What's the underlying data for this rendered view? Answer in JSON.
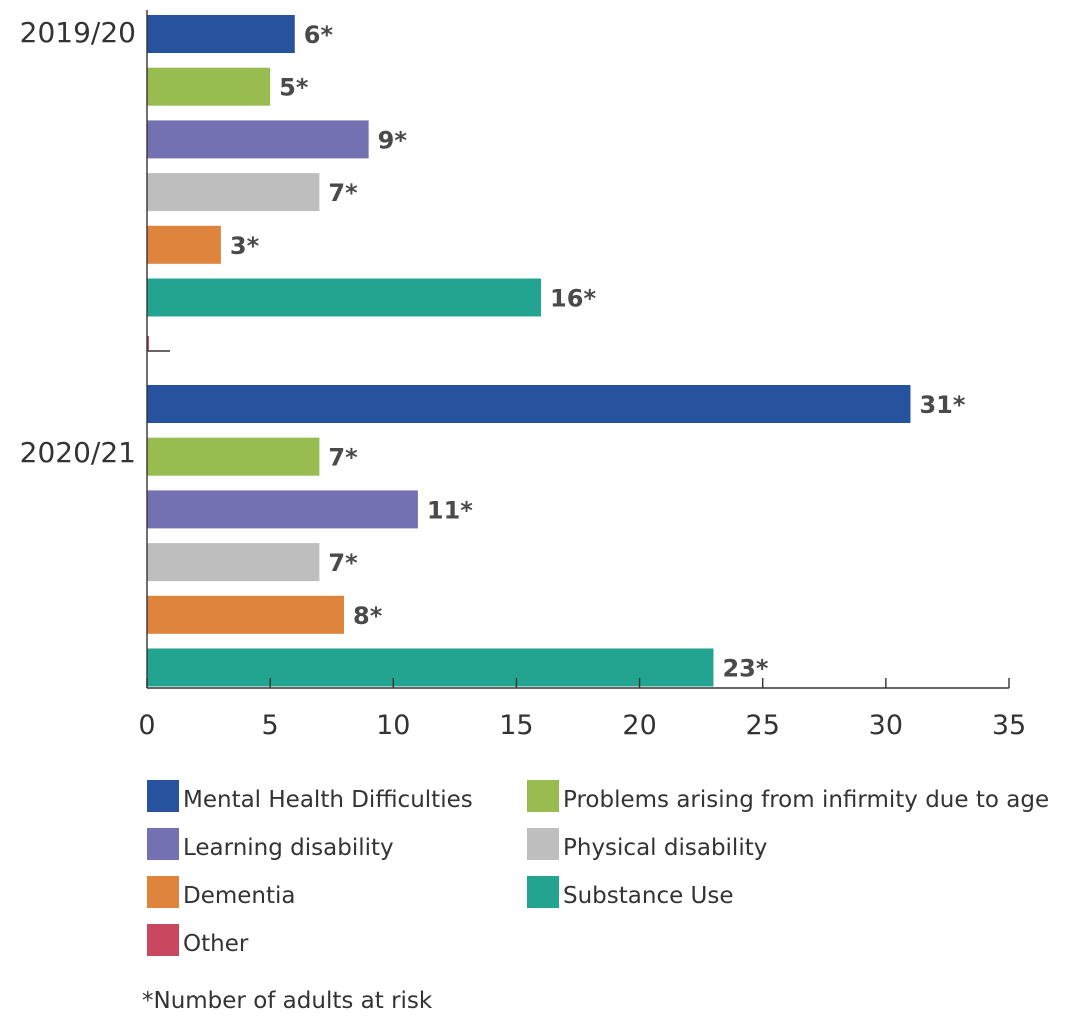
{
  "chart_data": {
    "type": "bar",
    "orientation": "horizontal",
    "groups": [
      "2019/20",
      "2020/21"
    ],
    "series": [
      {
        "name": "Mental Health Difficulties",
        "color": "#27539E",
        "values": [
          6,
          31
        ],
        "labels": [
          "6*",
          "31*"
        ]
      },
      {
        "name": "Problems arising from infirmity due to age",
        "color": "#99BC50",
        "values": [
          5,
          7
        ],
        "labels": [
          "5*",
          "7*"
        ]
      },
      {
        "name": "Learning disability",
        "color": "#7471B3",
        "values": [
          9,
          11
        ],
        "labels": [
          "9*",
          "11*"
        ]
      },
      {
        "name": "Physical disability",
        "color": "#BEBEBE",
        "values": [
          7,
          7
        ],
        "labels": [
          "7*",
          "7*"
        ]
      },
      {
        "name": "Dementia",
        "color": "#DE843D",
        "values": [
          3,
          8
        ],
        "labels": [
          "3*",
          "8*"
        ]
      },
      {
        "name": "Substance Use",
        "color": "#23A490",
        "values": [
          16,
          23
        ],
        "labels": [
          "16*",
          "23*"
        ]
      },
      {
        "name": "Other",
        "color": "#C9475F",
        "values": [
          0,
          0
        ],
        "labels": [
          "",
          ""
        ]
      }
    ],
    "xlim": [
      0,
      35
    ],
    "x_ticks": [
      "0",
      "5",
      "10",
      "15",
      "20",
      "25",
      "30",
      "35"
    ],
    "xlabel": "",
    "ylabel": "",
    "title": "",
    "grid": false,
    "legend_position": "bottom"
  },
  "footnote": {
    "marker": "*",
    "text": "Number of adults at risk"
  }
}
